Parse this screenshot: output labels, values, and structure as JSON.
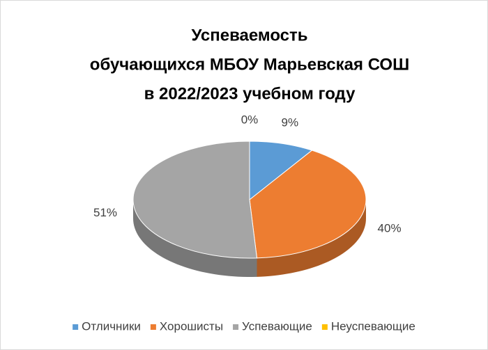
{
  "chart_data": {
    "type": "pie3d",
    "title": [
      "Успеваемость",
      "обучающихся МБОУ Марьевская СОШ",
      "в 2022/2023 учебном году"
    ],
    "categories": [
      "Отличники",
      "Хорошисты",
      "Успевающие",
      "Неуспевающие"
    ],
    "values": [
      9,
      40,
      51,
      0
    ],
    "value_labels": [
      "9%",
      "40%",
      "51%",
      "0%"
    ],
    "colors": [
      "#5b9bd5",
      "#ed7d31",
      "#a5a5a5",
      "#ffc000"
    ],
    "legend": "bottom"
  }
}
